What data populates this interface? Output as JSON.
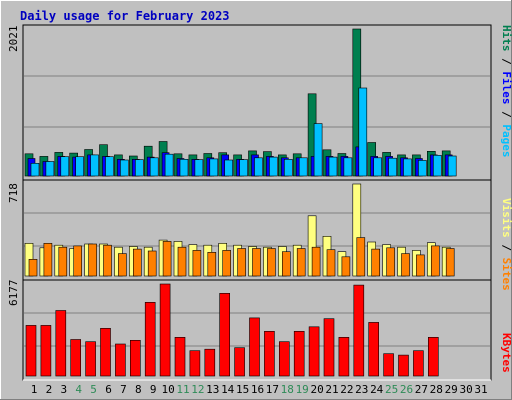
{
  "title": "Daily usage for February 2023",
  "colors": {
    "background": "#c0c0c0",
    "title_text": "#0000c0",
    "hits": "#007f4f",
    "files": "#0000ff",
    "pages": "#00c0ff",
    "visits": "#ff8000",
    "sites": "#ffff80",
    "kbytes": "#ff0000",
    "weekend_day": "#2e8b57",
    "weekday": "#000000"
  },
  "chart_data": [
    {
      "type": "bar",
      "panel": "hits-files-pages",
      "ylabel_max": "2021",
      "legend": [
        "Pages",
        "Files",
        "Hits"
      ],
      "ylim": [
        0,
        2021
      ],
      "categories": [
        "1",
        "2",
        "3",
        "4",
        "5",
        "6",
        "7",
        "8",
        "9",
        "10",
        "11",
        "12",
        "13",
        "14",
        "15",
        "16",
        "17",
        "18",
        "19",
        "20",
        "21",
        "22",
        "23",
        "24",
        "25",
        "26",
        "27",
        "28",
        "29",
        "30",
        "31"
      ],
      "series": [
        {
          "name": "Hits",
          "values": [
            305,
            270,
            325,
            315,
            365,
            430,
            290,
            275,
            410,
            475,
            305,
            290,
            310,
            320,
            290,
            345,
            335,
            290,
            305,
            1130,
            360,
            310,
            2021,
            460,
            325,
            290,
            290,
            340,
            345,
            0,
            0
          ]
        },
        {
          "name": "Files",
          "values": [
            240,
            200,
            270,
            260,
            290,
            270,
            230,
            230,
            260,
            320,
            240,
            230,
            250,
            290,
            230,
            290,
            270,
            250,
            250,
            270,
            270,
            270,
            400,
            270,
            270,
            250,
            240,
            290,
            290,
            0,
            0
          ]
        },
        {
          "name": "Pages",
          "values": [
            175,
            200,
            265,
            265,
            290,
            265,
            220,
            225,
            250,
            300,
            230,
            225,
            235,
            220,
            225,
            250,
            260,
            230,
            250,
            720,
            260,
            250,
            1210,
            250,
            245,
            235,
            215,
            285,
            275,
            0,
            0
          ]
        }
      ]
    },
    {
      "type": "bar",
      "panel": "visits-sites",
      "ylabel_max": "718",
      "legend": [
        "Sites",
        "Visits"
      ],
      "ylim": [
        0,
        718
      ],
      "categories": [
        "1",
        "2",
        "3",
        "4",
        "5",
        "6",
        "7",
        "8",
        "9",
        "10",
        "11",
        "12",
        "13",
        "14",
        "15",
        "16",
        "17",
        "18",
        "19",
        "20",
        "21",
        "22",
        "23",
        "24",
        "25",
        "26",
        "27",
        "28",
        "29",
        "30",
        "31"
      ],
      "series": [
        {
          "name": "Sites",
          "values": [
            130,
            255,
            225,
            235,
            250,
            240,
            175,
            210,
            195,
            270,
            225,
            200,
            185,
            200,
            215,
            215,
            215,
            190,
            215,
            225,
            205,
            150,
            300,
            210,
            220,
            175,
            165,
            235,
            215,
            0,
            0
          ]
        },
        {
          "name": "Visits",
          "values": [
            255,
            220,
            240,
            215,
            250,
            250,
            225,
            230,
            225,
            280,
            270,
            245,
            240,
            255,
            240,
            230,
            225,
            230,
            240,
            470,
            310,
            190,
            718,
            265,
            245,
            225,
            200,
            260,
            225,
            0,
            0
          ]
        }
      ]
    },
    {
      "type": "bar",
      "panel": "kbytes",
      "ylabel_max": "6177",
      "legend": [
        "KBytes"
      ],
      "ylim": [
        0,
        6177
      ],
      "categories": [
        "1",
        "2",
        "3",
        "4",
        "5",
        "6",
        "7",
        "8",
        "9",
        "10",
        "11",
        "12",
        "13",
        "14",
        "15",
        "16",
        "17",
        "18",
        "19",
        "20",
        "21",
        "22",
        "23",
        "24",
        "25",
        "26",
        "27",
        "28",
        "29",
        "30",
        "31"
      ],
      "series": [
        {
          "name": "KBytes",
          "values": [
            3400,
            3400,
            4400,
            2450,
            2300,
            3200,
            2150,
            2400,
            4950,
            6177,
            2600,
            1700,
            1800,
            5550,
            1900,
            3900,
            3000,
            2300,
            3000,
            3300,
            3850,
            2600,
            6100,
            3600,
            1500,
            1400,
            1700,
            2600,
            0,
            0,
            0
          ]
        }
      ]
    }
  ]
}
